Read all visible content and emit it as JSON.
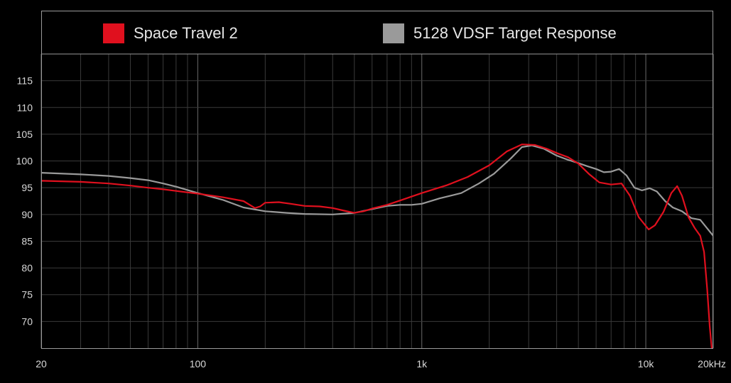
{
  "chart_data": {
    "type": "line",
    "title": "",
    "xlabel": "",
    "ylabel": "",
    "x_scale": "log",
    "xlim": [
      20,
      20000
    ],
    "ylim": [
      65,
      120
    ],
    "grid": true,
    "legend_position": "top",
    "y_ticks": [
      70,
      75,
      80,
      85,
      90,
      95,
      100,
      105,
      110,
      115
    ],
    "x_ticks": [
      {
        "value": 20,
        "label": "20"
      },
      {
        "value": 100,
        "label": "100"
      },
      {
        "value": 1000,
        "label": "1k"
      },
      {
        "value": 10000,
        "label": "10k"
      },
      {
        "value": 20000,
        "label": "20kHz"
      }
    ],
    "series": [
      {
        "name": "Space Travel 2",
        "color": "#e0101e",
        "points": [
          [
            20,
            96.3
          ],
          [
            30,
            96.1
          ],
          [
            40,
            95.8
          ],
          [
            50,
            95.4
          ],
          [
            60,
            95.0
          ],
          [
            70,
            94.7
          ],
          [
            80,
            94.4
          ],
          [
            100,
            93.9
          ],
          [
            130,
            93.2
          ],
          [
            160,
            92.5
          ],
          [
            180,
            91.2
          ],
          [
            190,
            91.5
          ],
          [
            200,
            92.2
          ],
          [
            230,
            92.3
          ],
          [
            260,
            92.0
          ],
          [
            300,
            91.6
          ],
          [
            350,
            91.5
          ],
          [
            400,
            91.2
          ],
          [
            450,
            90.7
          ],
          [
            500,
            90.3
          ],
          [
            550,
            90.6
          ],
          [
            600,
            91.1
          ],
          [
            700,
            91.8
          ],
          [
            800,
            92.6
          ],
          [
            1000,
            94.0
          ],
          [
            1300,
            95.5
          ],
          [
            1600,
            97.0
          ],
          [
            2000,
            99.2
          ],
          [
            2400,
            101.8
          ],
          [
            2800,
            103.1
          ],
          [
            3200,
            103.0
          ],
          [
            3600,
            102.3
          ],
          [
            4000,
            101.5
          ],
          [
            4500,
            100.7
          ],
          [
            5000,
            99.5
          ],
          [
            5600,
            97.5
          ],
          [
            6200,
            96.0
          ],
          [
            7000,
            95.6
          ],
          [
            7800,
            95.8
          ],
          [
            8500,
            93.5
          ],
          [
            9300,
            89.5
          ],
          [
            10300,
            87.2
          ],
          [
            11000,
            88.0
          ],
          [
            12000,
            90.5
          ],
          [
            13000,
            94.0
          ],
          [
            13800,
            95.3
          ],
          [
            14500,
            93.5
          ],
          [
            15500,
            89.5
          ],
          [
            16500,
            87.5
          ],
          [
            17500,
            86.0
          ],
          [
            18200,
            83.0
          ],
          [
            18800,
            76.0
          ],
          [
            19300,
            69.0
          ],
          [
            19700,
            65.0
          ]
        ]
      },
      {
        "name": "5128 VDSF Target Response",
        "color": "#9a9a9a",
        "points": [
          [
            20,
            97.8
          ],
          [
            30,
            97.5
          ],
          [
            40,
            97.2
          ],
          [
            50,
            96.8
          ],
          [
            60,
            96.4
          ],
          [
            70,
            95.8
          ],
          [
            80,
            95.2
          ],
          [
            100,
            94.0
          ],
          [
            130,
            92.7
          ],
          [
            160,
            91.3
          ],
          [
            200,
            90.6
          ],
          [
            250,
            90.3
          ],
          [
            300,
            90.1
          ],
          [
            400,
            90.0
          ],
          [
            500,
            90.3
          ],
          [
            600,
            91.0
          ],
          [
            700,
            91.6
          ],
          [
            800,
            91.8
          ],
          [
            900,
            91.8
          ],
          [
            1000,
            92.0
          ],
          [
            1200,
            93.0
          ],
          [
            1500,
            94.0
          ],
          [
            1800,
            95.8
          ],
          [
            2100,
            97.6
          ],
          [
            2500,
            100.5
          ],
          [
            2800,
            102.6
          ],
          [
            3100,
            102.9
          ],
          [
            3500,
            102.3
          ],
          [
            4000,
            101.0
          ],
          [
            4500,
            100.2
          ],
          [
            5000,
            99.6
          ],
          [
            5500,
            99.0
          ],
          [
            6000,
            98.5
          ],
          [
            6500,
            97.9
          ],
          [
            7000,
            98.0
          ],
          [
            7600,
            98.5
          ],
          [
            8200,
            97.3
          ],
          [
            8900,
            95.0
          ],
          [
            9600,
            94.5
          ],
          [
            10400,
            94.9
          ],
          [
            11200,
            94.3
          ],
          [
            12200,
            92.5
          ],
          [
            13200,
            91.3
          ],
          [
            14500,
            90.6
          ],
          [
            16000,
            89.3
          ],
          [
            17500,
            89.0
          ],
          [
            18700,
            87.5
          ],
          [
            20000,
            86.0
          ]
        ]
      }
    ]
  }
}
